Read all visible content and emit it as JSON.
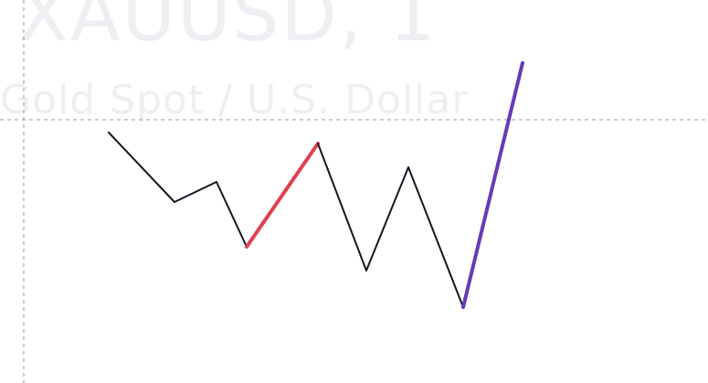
{
  "watermark": {
    "symbol_text": "XAUUSD, 1",
    "description_text": "Gold Spot / U.S. Dollar"
  },
  "colors": {
    "background": "#ffffff",
    "watermark": "#eeeff2",
    "crosshair": "#9598a1",
    "base_line": "#131722",
    "highlight_red": "#e0404f",
    "highlight_purple": "#673ab7"
  },
  "crosshair": {
    "style": "dashed",
    "vertical": true,
    "horizontal": true
  },
  "zigzag": {
    "segments": [
      {
        "name": "leg-1",
        "color": "base"
      },
      {
        "name": "leg-2",
        "color": "base"
      },
      {
        "name": "leg-3",
        "color": "base"
      },
      {
        "name": "leg-4",
        "color": "red"
      },
      {
        "name": "leg-5",
        "color": "base"
      },
      {
        "name": "leg-6",
        "color": "base"
      },
      {
        "name": "leg-7",
        "color": "base"
      },
      {
        "name": "leg-8",
        "color": "purple"
      }
    ]
  }
}
